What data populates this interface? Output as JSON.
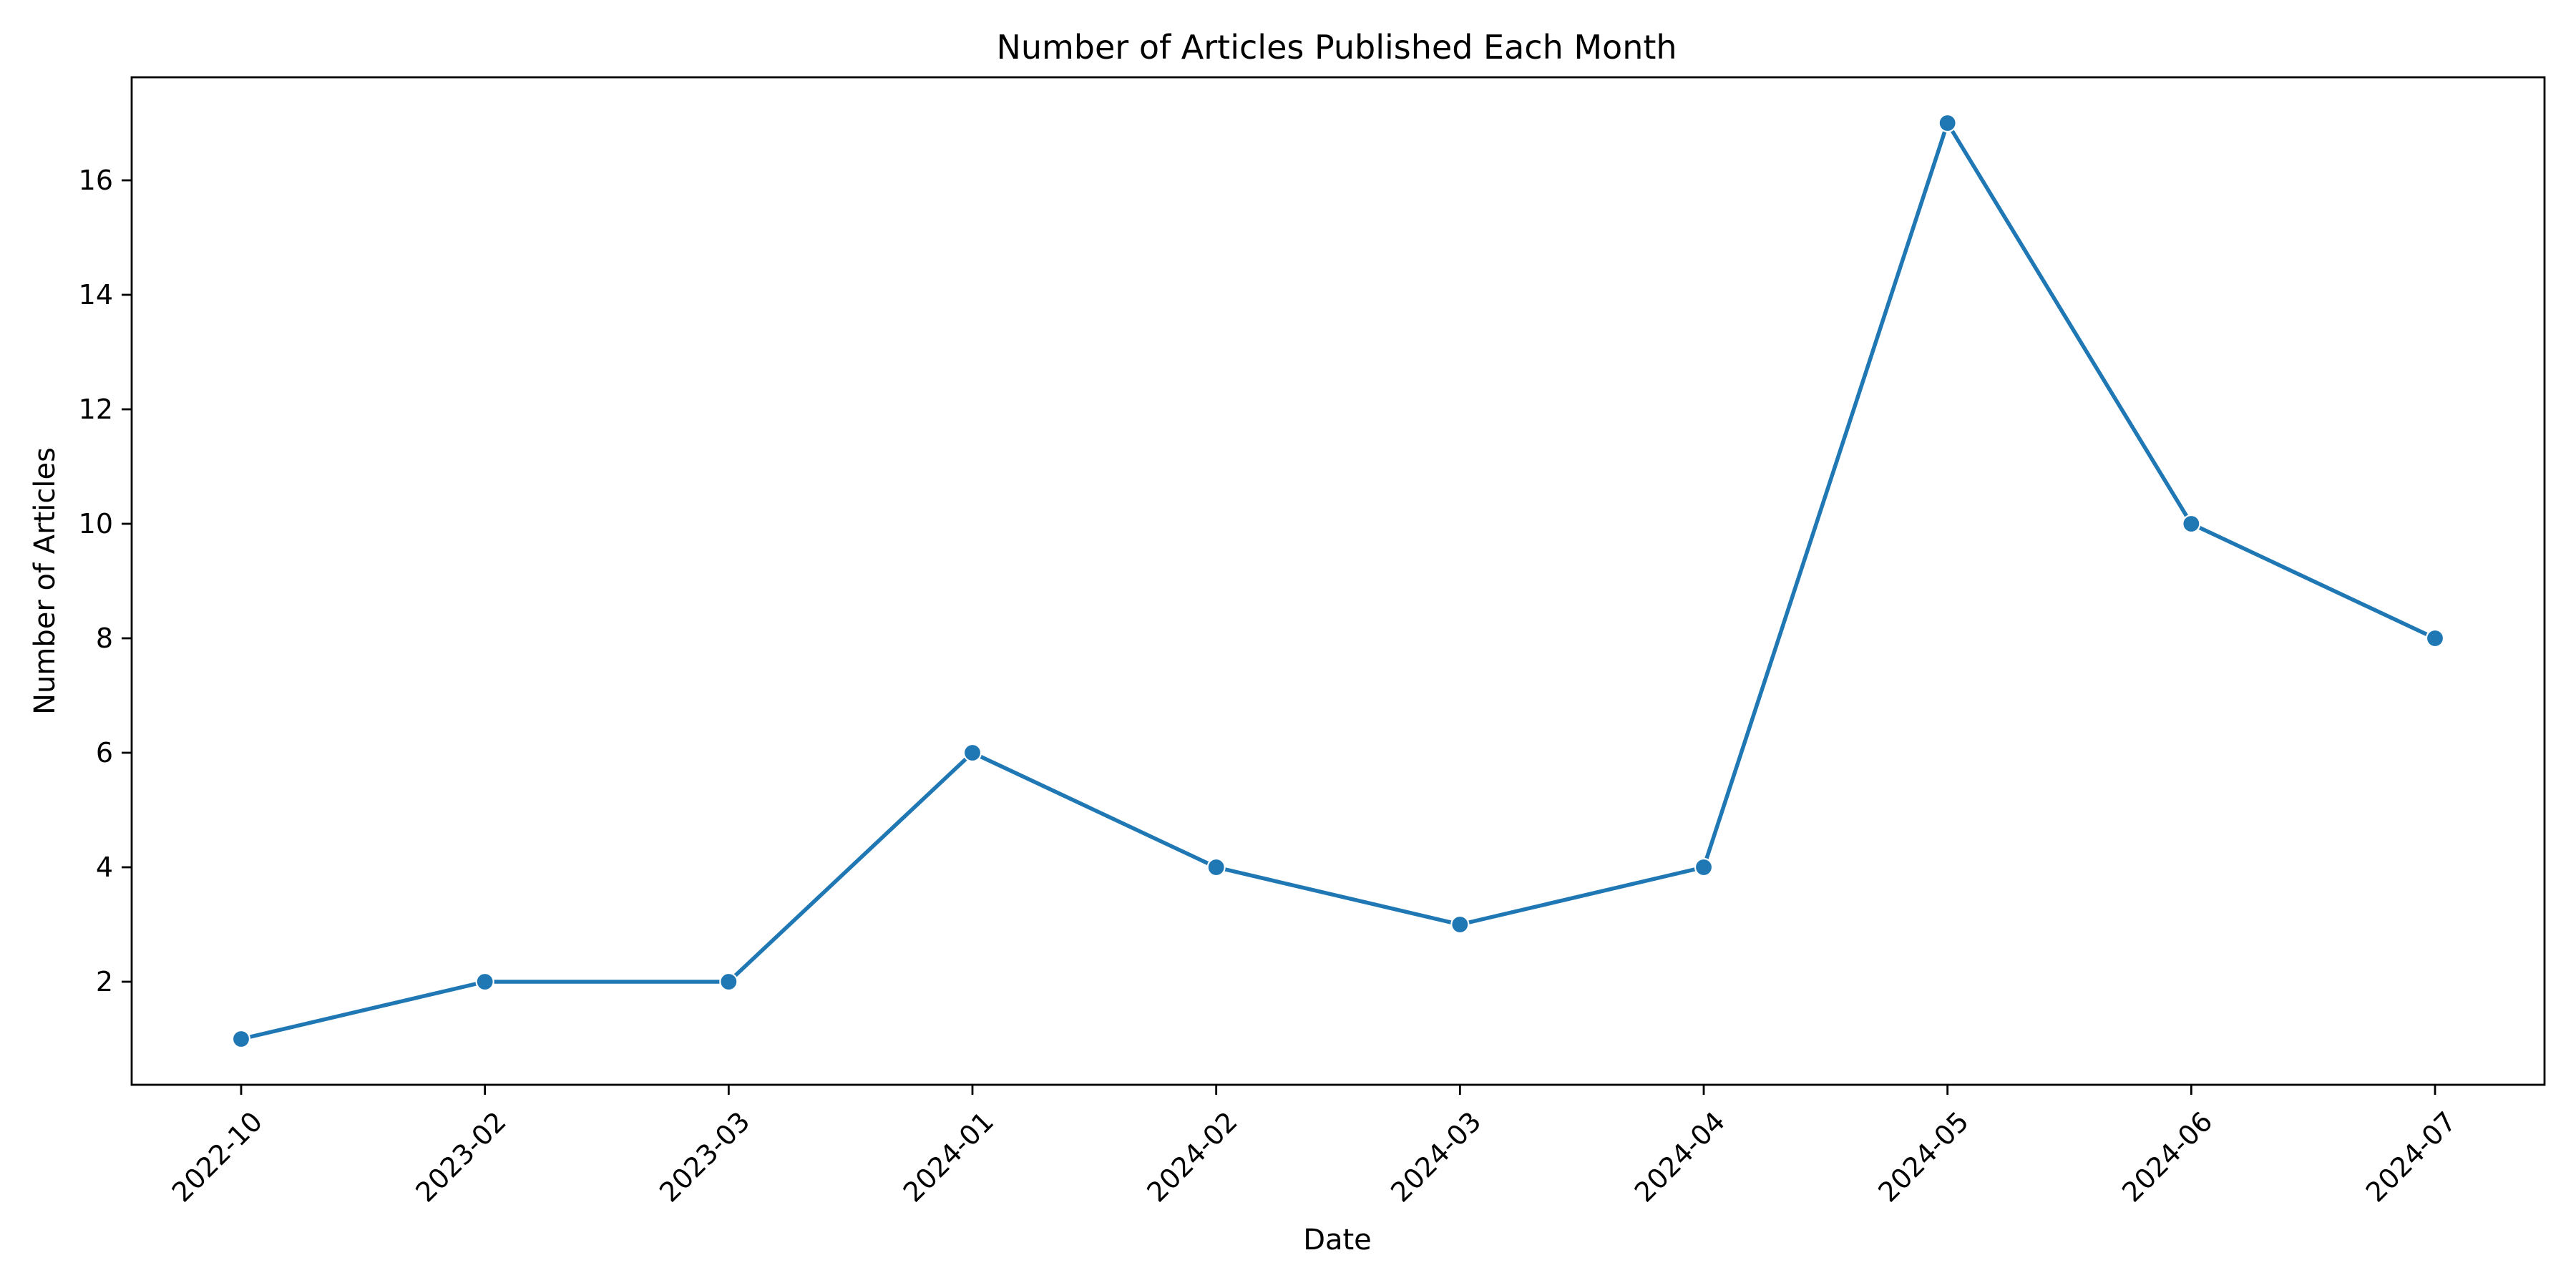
{
  "chart_data": {
    "type": "line",
    "title": "Number of Articles Published Each Month",
    "xlabel": "Date",
    "ylabel": "Number of Articles",
    "categories": [
      "2022-10",
      "2023-02",
      "2023-03",
      "2024-01",
      "2024-02",
      "2024-03",
      "2024-04",
      "2024-05",
      "2024-06",
      "2024-07"
    ],
    "series": [
      {
        "values": [
          1,
          2,
          2,
          6,
          4,
          3,
          4,
          17,
          10,
          8
        ],
        "color": "#1f77b4",
        "marker": "circle"
      }
    ],
    "yticks": [
      2,
      4,
      6,
      8,
      10,
      12,
      14,
      16
    ],
    "ylim": [
      0.2,
      17.8
    ],
    "grid": false,
    "legend": "none"
  }
}
